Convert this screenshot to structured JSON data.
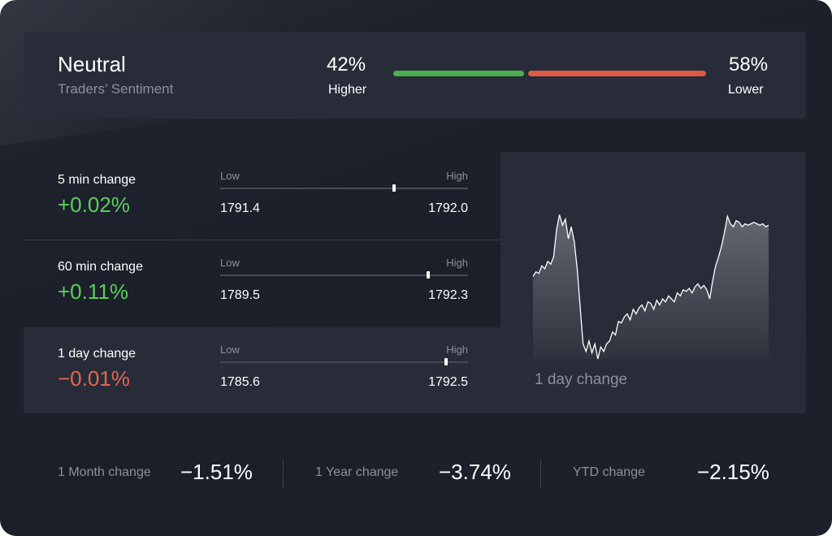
{
  "sentiment": {
    "title": "Neutral",
    "subtitle": "Traders’ Sentiment",
    "higher_pct": "42%",
    "higher_label": "Higher",
    "lower_pct": "58%",
    "lower_label": "Lower",
    "higher_fraction": 0.42,
    "colors": {
      "higher": "#4caf50",
      "lower": "#de5a43"
    }
  },
  "changes": [
    {
      "label": "5 min change",
      "value": "+0.02%",
      "low_label": "Low",
      "high_label": "High",
      "low": "1791.4",
      "high": "1792.0",
      "position": 0.7,
      "direction": "up"
    },
    {
      "label": "60 min change",
      "value": "+0.11%",
      "low_label": "Low",
      "high_label": "High",
      "low": "1789.5",
      "high": "1792.3",
      "position": 0.84,
      "direction": "up"
    },
    {
      "label": "1 day change",
      "value": "−0.01%",
      "low_label": "Low",
      "high_label": "High",
      "low": "1785.6",
      "high": "1792.5",
      "position": 0.91,
      "direction": "down"
    }
  ],
  "chart": {
    "label": "1 day change",
    "colors": {
      "line": "#ffffff"
    }
  },
  "chart_data": {
    "type": "line",
    "title": "",
    "xlabel": "",
    "ylabel": "",
    "x": [
      0,
      1,
      2,
      3,
      4,
      5,
      6,
      7,
      8,
      9,
      10,
      11,
      12,
      13,
      14,
      15,
      16,
      17,
      18,
      19,
      20,
      21,
      22,
      23,
      24,
      25,
      26,
      27,
      28,
      29,
      30,
      31,
      32,
      33,
      34,
      35,
      36,
      37,
      38,
      39,
      40,
      41,
      42,
      43,
      44,
      45,
      46,
      47,
      48,
      49,
      50,
      51,
      52,
      53,
      54,
      55,
      56,
      57,
      58,
      59,
      60,
      61,
      62,
      63,
      64,
      65,
      66,
      67,
      68,
      69,
      70,
      71,
      72,
      73,
      74,
      75,
      76,
      77,
      78,
      79,
      80
    ],
    "y": [
      0.55,
      0.58,
      0.57,
      0.62,
      0.6,
      0.65,
      0.63,
      0.68,
      0.86,
      0.96,
      0.89,
      0.93,
      0.8,
      0.88,
      0.78,
      0.6,
      0.35,
      0.1,
      0.05,
      0.12,
      0.04,
      0.1,
      0.0,
      0.08,
      0.05,
      0.1,
      0.12,
      0.18,
      0.16,
      0.25,
      0.24,
      0.28,
      0.3,
      0.26,
      0.33,
      0.3,
      0.34,
      0.36,
      0.32,
      0.38,
      0.37,
      0.33,
      0.39,
      0.36,
      0.4,
      0.38,
      0.42,
      0.4,
      0.38,
      0.44,
      0.42,
      0.46,
      0.45,
      0.47,
      0.44,
      0.48,
      0.5,
      0.47,
      0.49,
      0.46,
      0.4,
      0.52,
      0.62,
      0.68,
      0.75,
      0.84,
      0.95,
      0.9,
      0.88,
      0.92,
      0.91,
      0.88,
      0.9,
      0.89,
      0.9,
      0.91,
      0.9,
      0.89,
      0.9,
      0.88,
      0.89
    ],
    "ylim": [
      0,
      1
    ],
    "grid": false,
    "legend": "none"
  },
  "summary": [
    {
      "label": "1 Month change",
      "value": "−1.51%"
    },
    {
      "label": "1 Year change",
      "value": "−3.74%"
    },
    {
      "label": "YTD change",
      "value": "−2.15%"
    }
  ],
  "value_colors": {
    "up": "#5ccf5c",
    "down": "#e8654f"
  }
}
